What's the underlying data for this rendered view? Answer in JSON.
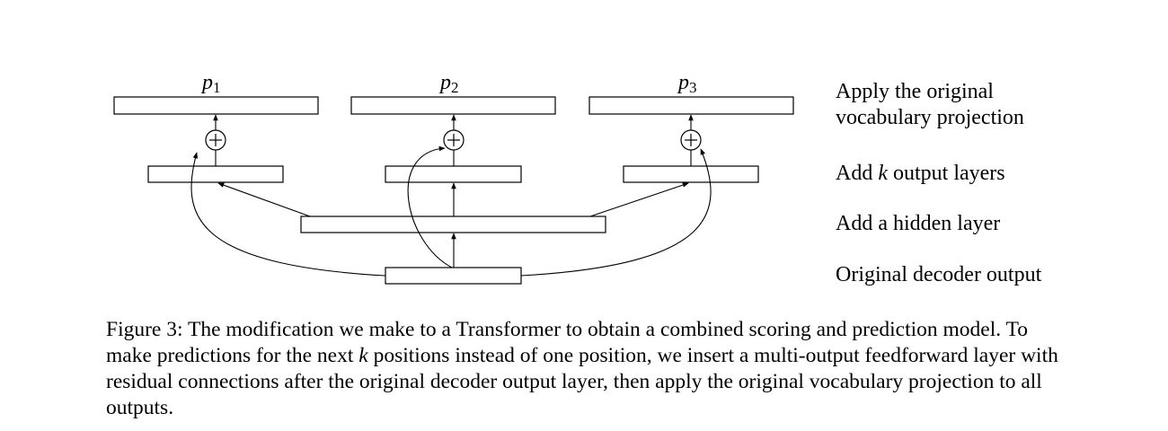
{
  "diagram": {
    "outputs": [
      {
        "symbol": "p",
        "subscript": "1"
      },
      {
        "symbol": "p",
        "subscript": "2"
      },
      {
        "symbol": "p",
        "subscript": "3"
      }
    ],
    "right_labels": {
      "vocab_line1": "Apply the original",
      "vocab_line2": "vocabulary projection",
      "output_layers_pre": "Add ",
      "output_layers_var": "k",
      "output_layers_post": " output layers",
      "hidden_layer": "Add a hidden layer",
      "decoder_output": "Original decoder output"
    },
    "plus_symbol": "+"
  },
  "caption": {
    "part1": "Figure 3: The modification we make to a Transformer to obtain a combined scoring and prediction model. To make predictions for the next ",
    "var": "k",
    "part2": " positions instead of one position, we insert a multi-output feedforward layer with residual connections after the original decoder output layer, then apply the original vocabulary projection to all outputs."
  },
  "colors": {
    "stroke": "#000000",
    "background": "#ffffff"
  }
}
